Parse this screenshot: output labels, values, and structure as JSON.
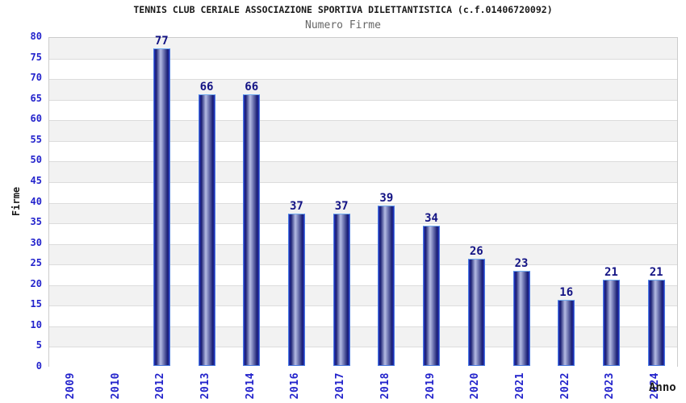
{
  "header": {
    "title": "TENNIS CLUB CERIALE ASSOCIAZIONE SPORTIVA DILETTANTISTICA (c.f.01406720092)",
    "subtitle": "Numero Firme"
  },
  "colors": {
    "tick_color": "#2323cc",
    "value_label_color": "#131384",
    "subtitle_color": "#666666",
    "band_color": "#f2f2f2",
    "gridline_color": "#dcdcdc",
    "plot_border_color": "#cccccc",
    "bar_dark": "#181d72",
    "bar_light": "#b4bce4",
    "bar_edge": "#2936c4",
    "bar_border_side": "#4a7ce0",
    "bar_border_top": "#74aef0"
  },
  "chart_data": {
    "type": "bar",
    "title": "TENNIS CLUB CERIALE ASSOCIAZIONE SPORTIVA DILETTANTISTICA (c.f.01406720092)",
    "subtitle": "Numero Firme",
    "categories": [
      "2009",
      "2010",
      "2012",
      "2013",
      "2014",
      "2016",
      "2017",
      "2018",
      "2019",
      "2020",
      "2021",
      "2022",
      "2023",
      "2024"
    ],
    "values": [
      0,
      0,
      77,
      66,
      66,
      37,
      37,
      39,
      34,
      26,
      23,
      16,
      21,
      21
    ],
    "xlabel": "Anno",
    "ylabel": "Firme",
    "ylim": [
      0,
      80
    ],
    "ytick_step": 5,
    "yticks": [
      0,
      5,
      10,
      15,
      20,
      25,
      30,
      35,
      40,
      45,
      50,
      55,
      60,
      65,
      70,
      75,
      80
    ],
    "grid": true,
    "alternating_bands": true,
    "legend": false,
    "value_labels_shown_for_nonzero_bars": true
  }
}
